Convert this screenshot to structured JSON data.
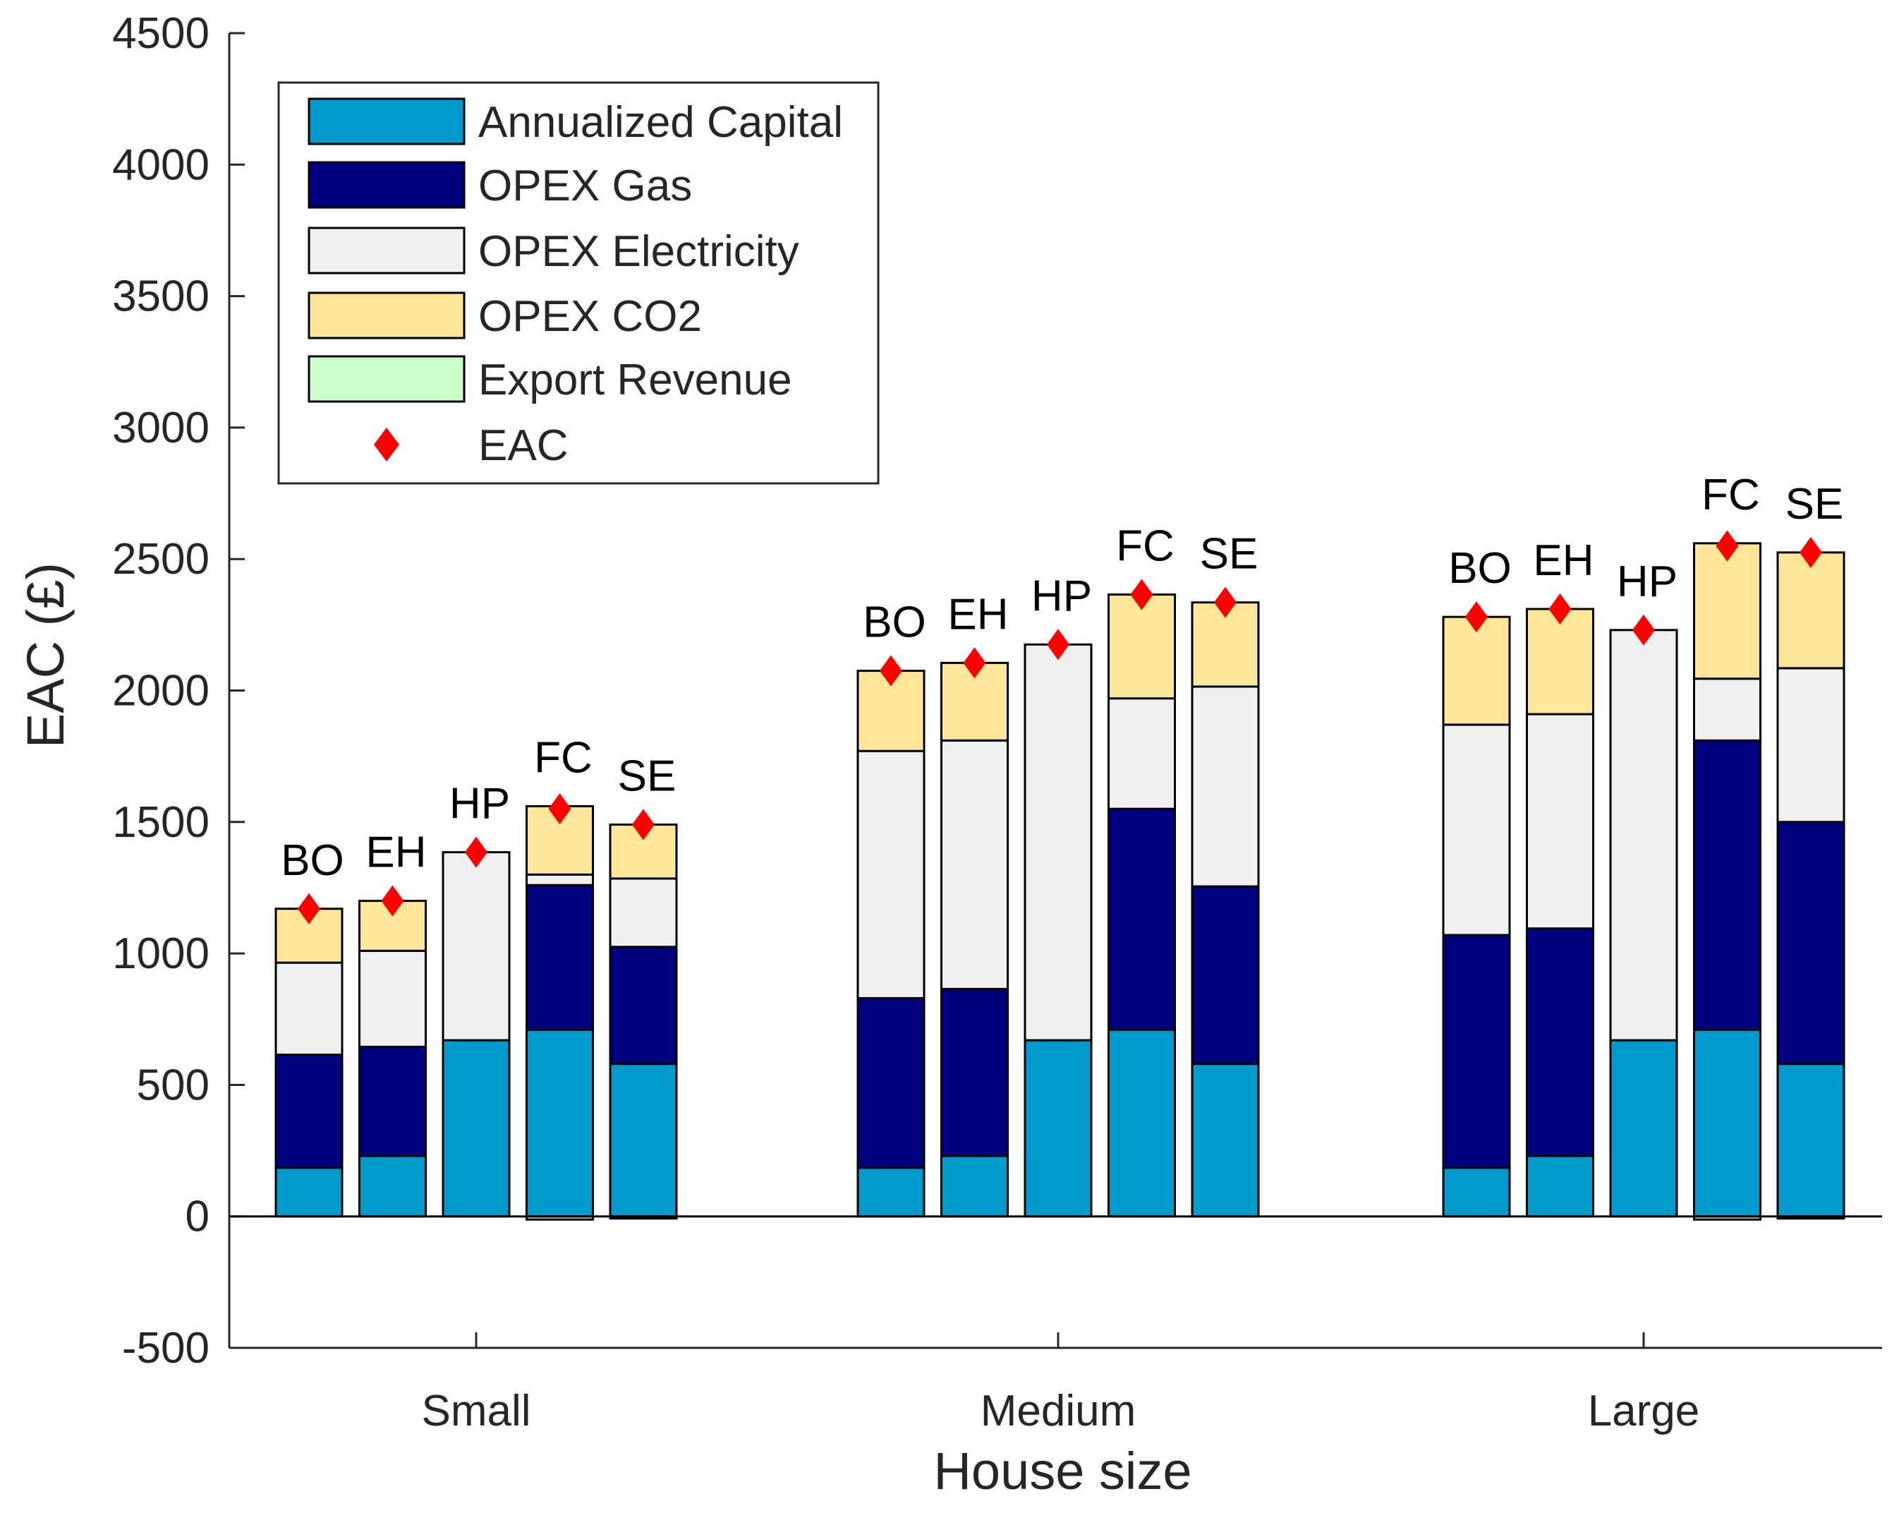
{
  "chart_data": {
    "type": "bar",
    "subtype": "grouped-stacked",
    "xlabel": "House size",
    "ylabel": "EAC (£)",
    "ylim": [
      -500,
      4500
    ],
    "yticks": [
      -500,
      0,
      500,
      1000,
      1500,
      2000,
      2500,
      3000,
      3500,
      4000,
      4500
    ],
    "groups": [
      "Small",
      "Medium",
      "Large"
    ],
    "technologies": [
      "BO",
      "EH",
      "HP",
      "FC",
      "SE"
    ],
    "series": [
      {
        "name": "Annualized Capital",
        "color": "#009ACD"
      },
      {
        "name": "OPEX Gas",
        "color": "#000080"
      },
      {
        "name": "OPEX Electricity",
        "color": "#F0F0F0"
      },
      {
        "name": "OPEX CO2",
        "color": "#FFE699"
      },
      {
        "name": "Export Revenue",
        "color": "#CCFFCC"
      }
    ],
    "marker": {
      "name": "EAC",
      "color": "#FF0000",
      "shape": "diamond"
    },
    "bars": [
      {
        "group": "Small",
        "label": "BO",
        "capital": 185,
        "gas": 430,
        "electricity": 350,
        "co2": 205,
        "export": 0,
        "eac": 1170
      },
      {
        "group": "Small",
        "label": "EH",
        "capital": 230,
        "gas": 415,
        "electricity": 365,
        "co2": 190,
        "export": 0,
        "eac": 1200
      },
      {
        "group": "Small",
        "label": "HP",
        "capital": 670,
        "gas": 0,
        "electricity": 715,
        "co2": 0,
        "export": 0,
        "eac": 1385
      },
      {
        "group": "Small",
        "label": "FC",
        "capital": 710,
        "gas": 550,
        "electricity": 40,
        "co2": 260,
        "export": -12,
        "eac": 1550
      },
      {
        "group": "Small",
        "label": "SE",
        "capital": 580,
        "gas": 445,
        "electricity": 260,
        "co2": 205,
        "export": -8,
        "eac": 1490
      },
      {
        "group": "Medium",
        "label": "BO",
        "capital": 185,
        "gas": 645,
        "electricity": 940,
        "co2": 305,
        "export": 0,
        "eac": 2075
      },
      {
        "group": "Medium",
        "label": "EH",
        "capital": 230,
        "gas": 635,
        "electricity": 945,
        "co2": 295,
        "export": 0,
        "eac": 2105
      },
      {
        "group": "Medium",
        "label": "HP",
        "capital": 670,
        "gas": 0,
        "electricity": 1505,
        "co2": 0,
        "export": 0,
        "eac": 2175
      },
      {
        "group": "Medium",
        "label": "FC",
        "capital": 710,
        "gas": 840,
        "electricity": 420,
        "co2": 395,
        "export": 0,
        "eac": 2365
      },
      {
        "group": "Medium",
        "label": "SE",
        "capital": 580,
        "gas": 675,
        "electricity": 760,
        "co2": 320,
        "export": 0,
        "eac": 2335
      },
      {
        "group": "Large",
        "label": "BO",
        "capital": 185,
        "gas": 885,
        "electricity": 800,
        "co2": 410,
        "export": 0,
        "eac": 2280
      },
      {
        "group": "Large",
        "label": "EH",
        "capital": 230,
        "gas": 865,
        "electricity": 815,
        "co2": 400,
        "export": 0,
        "eac": 2310
      },
      {
        "group": "Large",
        "label": "HP",
        "capital": 670,
        "gas": 0,
        "electricity": 1560,
        "co2": 0,
        "export": 0,
        "eac": 2230
      },
      {
        "group": "Large",
        "label": "FC",
        "capital": 710,
        "gas": 1100,
        "electricity": 235,
        "co2": 515,
        "export": -12,
        "eac": 2550
      },
      {
        "group": "Large",
        "label": "SE",
        "capital": 580,
        "gas": 920,
        "electricity": 585,
        "co2": 440,
        "export": -8,
        "eac": 2525
      }
    ]
  }
}
